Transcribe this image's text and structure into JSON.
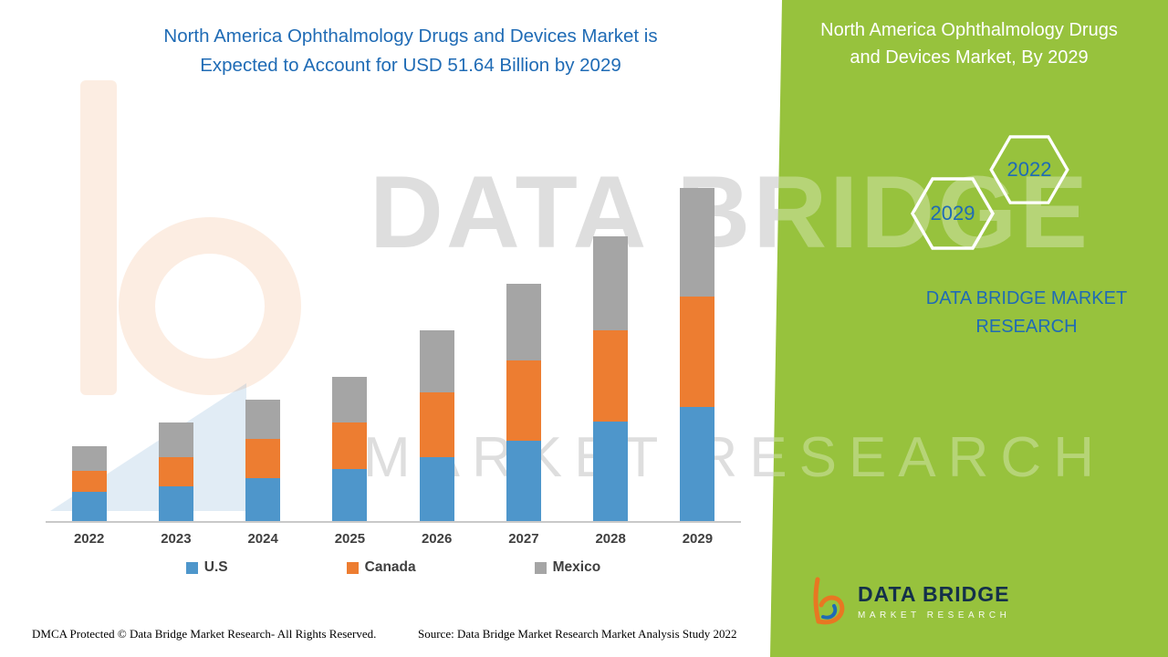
{
  "page": {
    "main_title_line1": "North America Ophthalmology Drugs and Devices Market is",
    "main_title_line2": "Expected to Account for USD 51.64 Billion by 2029"
  },
  "watermark": {
    "line1": "DATA BRIDGE",
    "line2": "MARKET RESEARCH"
  },
  "chart_data": {
    "type": "bar",
    "stacked": true,
    "title": "North America Ophthalmology Drugs and Devices Market is Expected to Account for USD 51.64 Billion by 2029",
    "unit": "USD Billion",
    "categories": [
      "2022",
      "2023",
      "2024",
      "2025",
      "2026",
      "2027",
      "2028",
      "2029"
    ],
    "series": [
      {
        "name": "U.S",
        "color": "#4e96cb",
        "values": [
          4.5,
          5.4,
          6.6,
          8.1,
          9.9,
          12.4,
          15.4,
          17.7
        ]
      },
      {
        "name": "Canada",
        "color": "#ed7d31",
        "values": [
          3.3,
          4.5,
          6.1,
          7.2,
          10.0,
          12.4,
          14.1,
          17.0
        ]
      },
      {
        "name": "Mexico",
        "color": "#a5a5a5",
        "values": [
          3.8,
          5.4,
          6.1,
          7.1,
          9.6,
          12.0,
          14.6,
          16.9
        ]
      }
    ],
    "totals_note": "2029 total = 51.64",
    "xlabel": "",
    "ylabel": "",
    "ylim": [
      0,
      52
    ],
    "grid": false,
    "legend_position": "bottom"
  },
  "side_panel": {
    "title_line1": "North America Ophthalmology Drugs",
    "title_line2": "and Devices Market, By 2029",
    "hexagons": [
      {
        "label": "2029"
      },
      {
        "label": "2022"
      }
    ],
    "brand_line1": "DATA BRIDGE MARKET",
    "brand_line2": "RESEARCH",
    "accent_green": "#97c23d",
    "text_blue": "#1f6bb5"
  },
  "logo": {
    "name": "DATA BRIDGE",
    "tagline": "MARKET RESEARCH"
  },
  "footer": {
    "dmca": "DMCA Protected © Data Bridge Market Research- All Rights Reserved.",
    "source": "Source: Data Bridge Market Research Market Analysis Study 2022"
  }
}
